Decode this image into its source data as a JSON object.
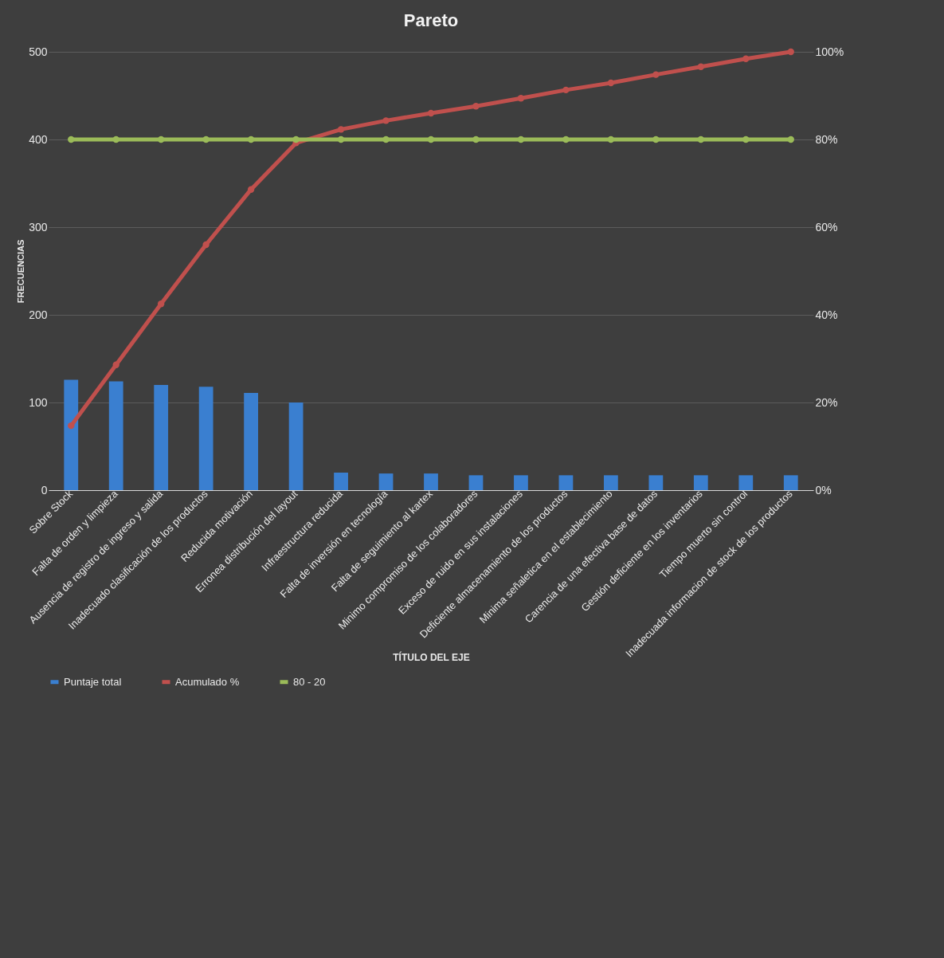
{
  "chart_data": {
    "type": "bar",
    "title": "Pareto",
    "xlabel": "TÍTULO DEL EJE",
    "ylabel": "FRECUENCIAS",
    "categories": [
      "Sobre Stock",
      "Falta de orden y limpieza",
      "Ausencia de registro de ingreso y salida",
      "Inadecuado clasificación de los productos",
      "Reducida motivación",
      "Erronea distribución del layout",
      "Infraestructura reducida",
      "Falta de inversión en tecnología",
      "Falta de seguimiento al kartex",
      "Minimo compromiso de los colaboradores",
      "Exceso de ruido en sus instalaciones",
      "Deficiente almacenamiento de los productos",
      "Minima señaletica en el establecimiento",
      "Carencia de una efectiva base de datos",
      "Gestión deficiente en los inventarios",
      "Tiempo muerto sin control",
      "Inadecuada informacion de stock de los productos"
    ],
    "series": [
      {
        "name": "Puntaje total",
        "color": "#3a7fd0",
        "values": [
          126,
          124,
          120,
          118,
          111,
          100,
          20,
          19,
          19,
          17,
          17,
          17,
          17,
          17,
          17,
          17,
          17
        ]
      },
      {
        "name": "Acumulado %",
        "type": "line",
        "axis": "y2",
        "color": "#c0504d",
        "values": [
          14.7,
          28.6,
          42.5,
          56,
          68.6,
          79.2,
          82.3,
          84.3,
          86,
          87.6,
          89.4,
          91.3,
          92.9,
          94.8,
          96.6,
          98.4,
          100
        ]
      },
      {
        "name": "80 - 20",
        "type": "line",
        "axis": "y2",
        "color": "#9bbb59",
        "values": [
          80,
          80,
          80,
          80,
          80,
          80,
          80,
          80,
          80,
          80,
          80,
          80,
          80,
          80,
          80,
          80,
          80
        ]
      }
    ],
    "ylim": [
      0,
      500
    ],
    "yticks": [
      0,
      100,
      200,
      300,
      400,
      500
    ],
    "y2lim": [
      0,
      100
    ],
    "y2ticks": [
      {
        "value": 0,
        "label": "0%"
      },
      {
        "value": 20,
        "label": "20%"
      },
      {
        "value": 40,
        "label": "40%"
      },
      {
        "value": 60,
        "label": "60%"
      },
      {
        "value": 80,
        "label": "80%"
      },
      {
        "value": 100,
        "label": "100%"
      }
    ],
    "grid": "y",
    "legend": "bottom",
    "marker": "circle"
  }
}
